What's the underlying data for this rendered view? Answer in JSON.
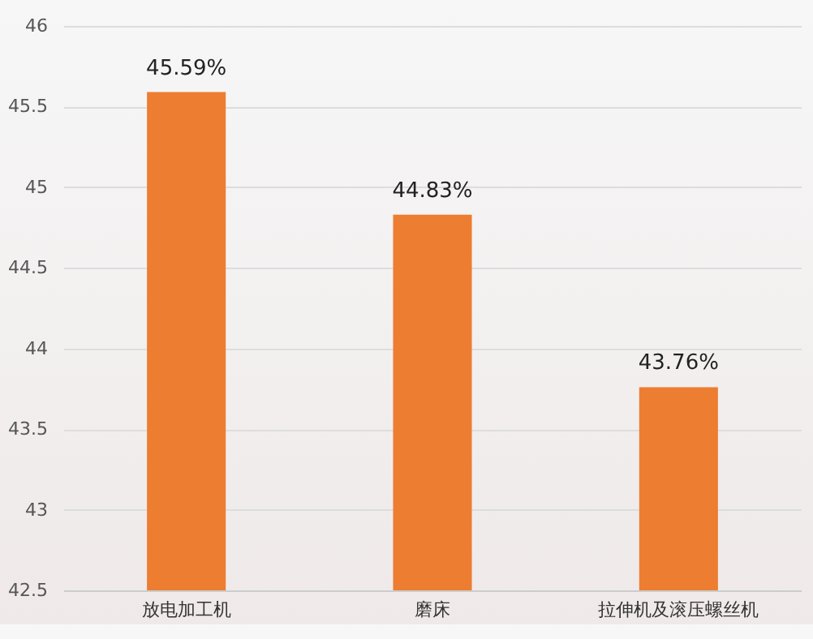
{
  "chart_data": {
    "type": "bar",
    "categories": [
      "放电加工机",
      "磨床",
      "拉伸机及滚压螺丝机"
    ],
    "values": [
      45.59,
      44.83,
      43.76
    ],
    "value_labels": [
      "45.59%",
      "44.83%",
      "43.76%"
    ],
    "color": "#ed7d31",
    "ylim": [
      42.5,
      46
    ],
    "yticks": [
      42.5,
      43,
      43.5,
      44,
      44.5,
      45,
      45.5,
      46
    ],
    "grid": "y"
  }
}
